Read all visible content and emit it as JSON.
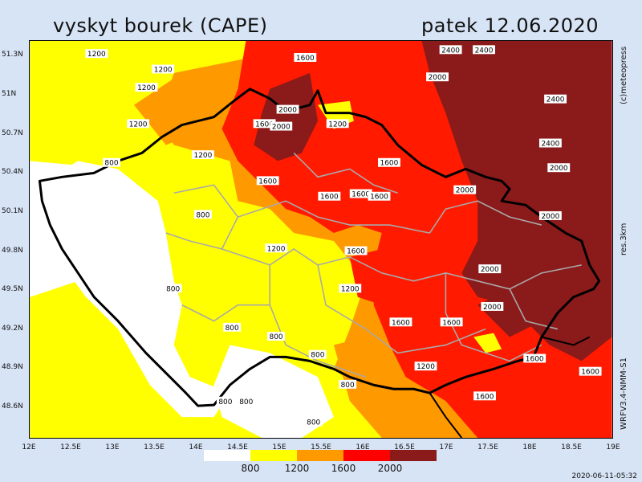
{
  "title": "vyskyt bourek (CAPE)",
  "date": "patek  12.06.2020",
  "copyright": "(c)meteopress",
  "resolution": "res.3km",
  "model": "WRFV3.4-NMM-S1",
  "timestamp": "2020-06-11-05:32",
  "lat_labels": [
    "51.3N",
    "51N",
    "50.7N",
    "50.4N",
    "50.1N",
    "49.8N",
    "49.5N",
    "49.2N",
    "48.9N",
    "48.6N"
  ],
  "lon_labels": [
    "12E",
    "12.5E",
    "13E",
    "13.5E",
    "14E",
    "14.5E",
    "15E",
    "15.5E",
    "16E",
    "16.5E",
    "17E",
    "17.5E",
    "18E",
    "18.5E",
    "19E"
  ],
  "legend": {
    "colors": [
      "#ffffff",
      "#ffff00",
      "#ff9900",
      "#ff0000",
      "#8b1a1a"
    ],
    "ticks": [
      "800",
      "1200",
      "1600",
      "2000"
    ]
  },
  "contour_labels": [
    {
      "text": "1200",
      "lon": 12.8,
      "lat": 51.32
    },
    {
      "text": "1200",
      "lon": 13.6,
      "lat": 51.2
    },
    {
      "text": "1200",
      "lon": 13.4,
      "lat": 51.06
    },
    {
      "text": "1200",
      "lon": 13.3,
      "lat": 50.78
    },
    {
      "text": "800",
      "lon": 12.98,
      "lat": 50.48
    },
    {
      "text": "1200",
      "lon": 14.08,
      "lat": 50.54
    },
    {
      "text": "1600",
      "lon": 15.31,
      "lat": 51.29
    },
    {
      "text": "2000",
      "lon": 15.1,
      "lat": 50.89
    },
    {
      "text": "1600",
      "lon": 14.82,
      "lat": 50.78
    },
    {
      "text": "2000",
      "lon": 15.02,
      "lat": 50.76
    },
    {
      "text": "1200",
      "lon": 15.7,
      "lat": 50.78
    },
    {
      "text": "2400",
      "lon": 17.06,
      "lat": 51.35
    },
    {
      "text": "2400",
      "lon": 17.46,
      "lat": 51.35
    },
    {
      "text": "2000",
      "lon": 16.9,
      "lat": 51.14
    },
    {
      "text": "2400",
      "lon": 18.32,
      "lat": 50.97
    },
    {
      "text": "2400",
      "lon": 18.26,
      "lat": 50.63
    },
    {
      "text": "2000",
      "lon": 18.36,
      "lat": 50.44
    },
    {
      "text": "1600",
      "lon": 16.32,
      "lat": 50.48
    },
    {
      "text": "1600",
      "lon": 14.86,
      "lat": 50.34
    },
    {
      "text": "1600",
      "lon": 15.6,
      "lat": 50.22
    },
    {
      "text": "1600",
      "lon": 15.98,
      "lat": 50.24
    },
    {
      "text": "1600",
      "lon": 16.2,
      "lat": 50.22
    },
    {
      "text": "2000",
      "lon": 17.23,
      "lat": 50.27
    },
    {
      "text": "2000",
      "lon": 18.26,
      "lat": 50.07
    },
    {
      "text": "800",
      "lon": 14.08,
      "lat": 50.08
    },
    {
      "text": "1200",
      "lon": 14.96,
      "lat": 49.82
    },
    {
      "text": "1600",
      "lon": 15.92,
      "lat": 49.8
    },
    {
      "text": "2000",
      "lon": 17.53,
      "lat": 49.66
    },
    {
      "text": "800",
      "lon": 13.72,
      "lat": 49.51
    },
    {
      "text": "1200",
      "lon": 15.85,
      "lat": 49.51
    },
    {
      "text": "2000",
      "lon": 17.56,
      "lat": 49.37
    },
    {
      "text": "1600",
      "lon": 16.46,
      "lat": 49.25
    },
    {
      "text": "1600",
      "lon": 17.07,
      "lat": 49.25
    },
    {
      "text": "800",
      "lon": 14.43,
      "lat": 49.21
    },
    {
      "text": "800",
      "lon": 14.96,
      "lat": 49.14
    },
    {
      "text": "800",
      "lon": 15.46,
      "lat": 49.0
    },
    {
      "text": "1200",
      "lon": 16.76,
      "lat": 48.91
    },
    {
      "text": "1600",
      "lon": 18.07,
      "lat": 48.97
    },
    {
      "text": "1600",
      "lon": 18.74,
      "lat": 48.87
    },
    {
      "text": "800",
      "lon": 14.35,
      "lat": 48.64
    },
    {
      "text": "800",
      "lon": 14.6,
      "lat": 48.64
    },
    {
      "text": "800",
      "lon": 15.82,
      "lat": 48.77
    },
    {
      "text": "800",
      "lon": 15.41,
      "lat": 48.48
    },
    {
      "text": "1600",
      "lon": 17.47,
      "lat": 48.68
    }
  ]
}
